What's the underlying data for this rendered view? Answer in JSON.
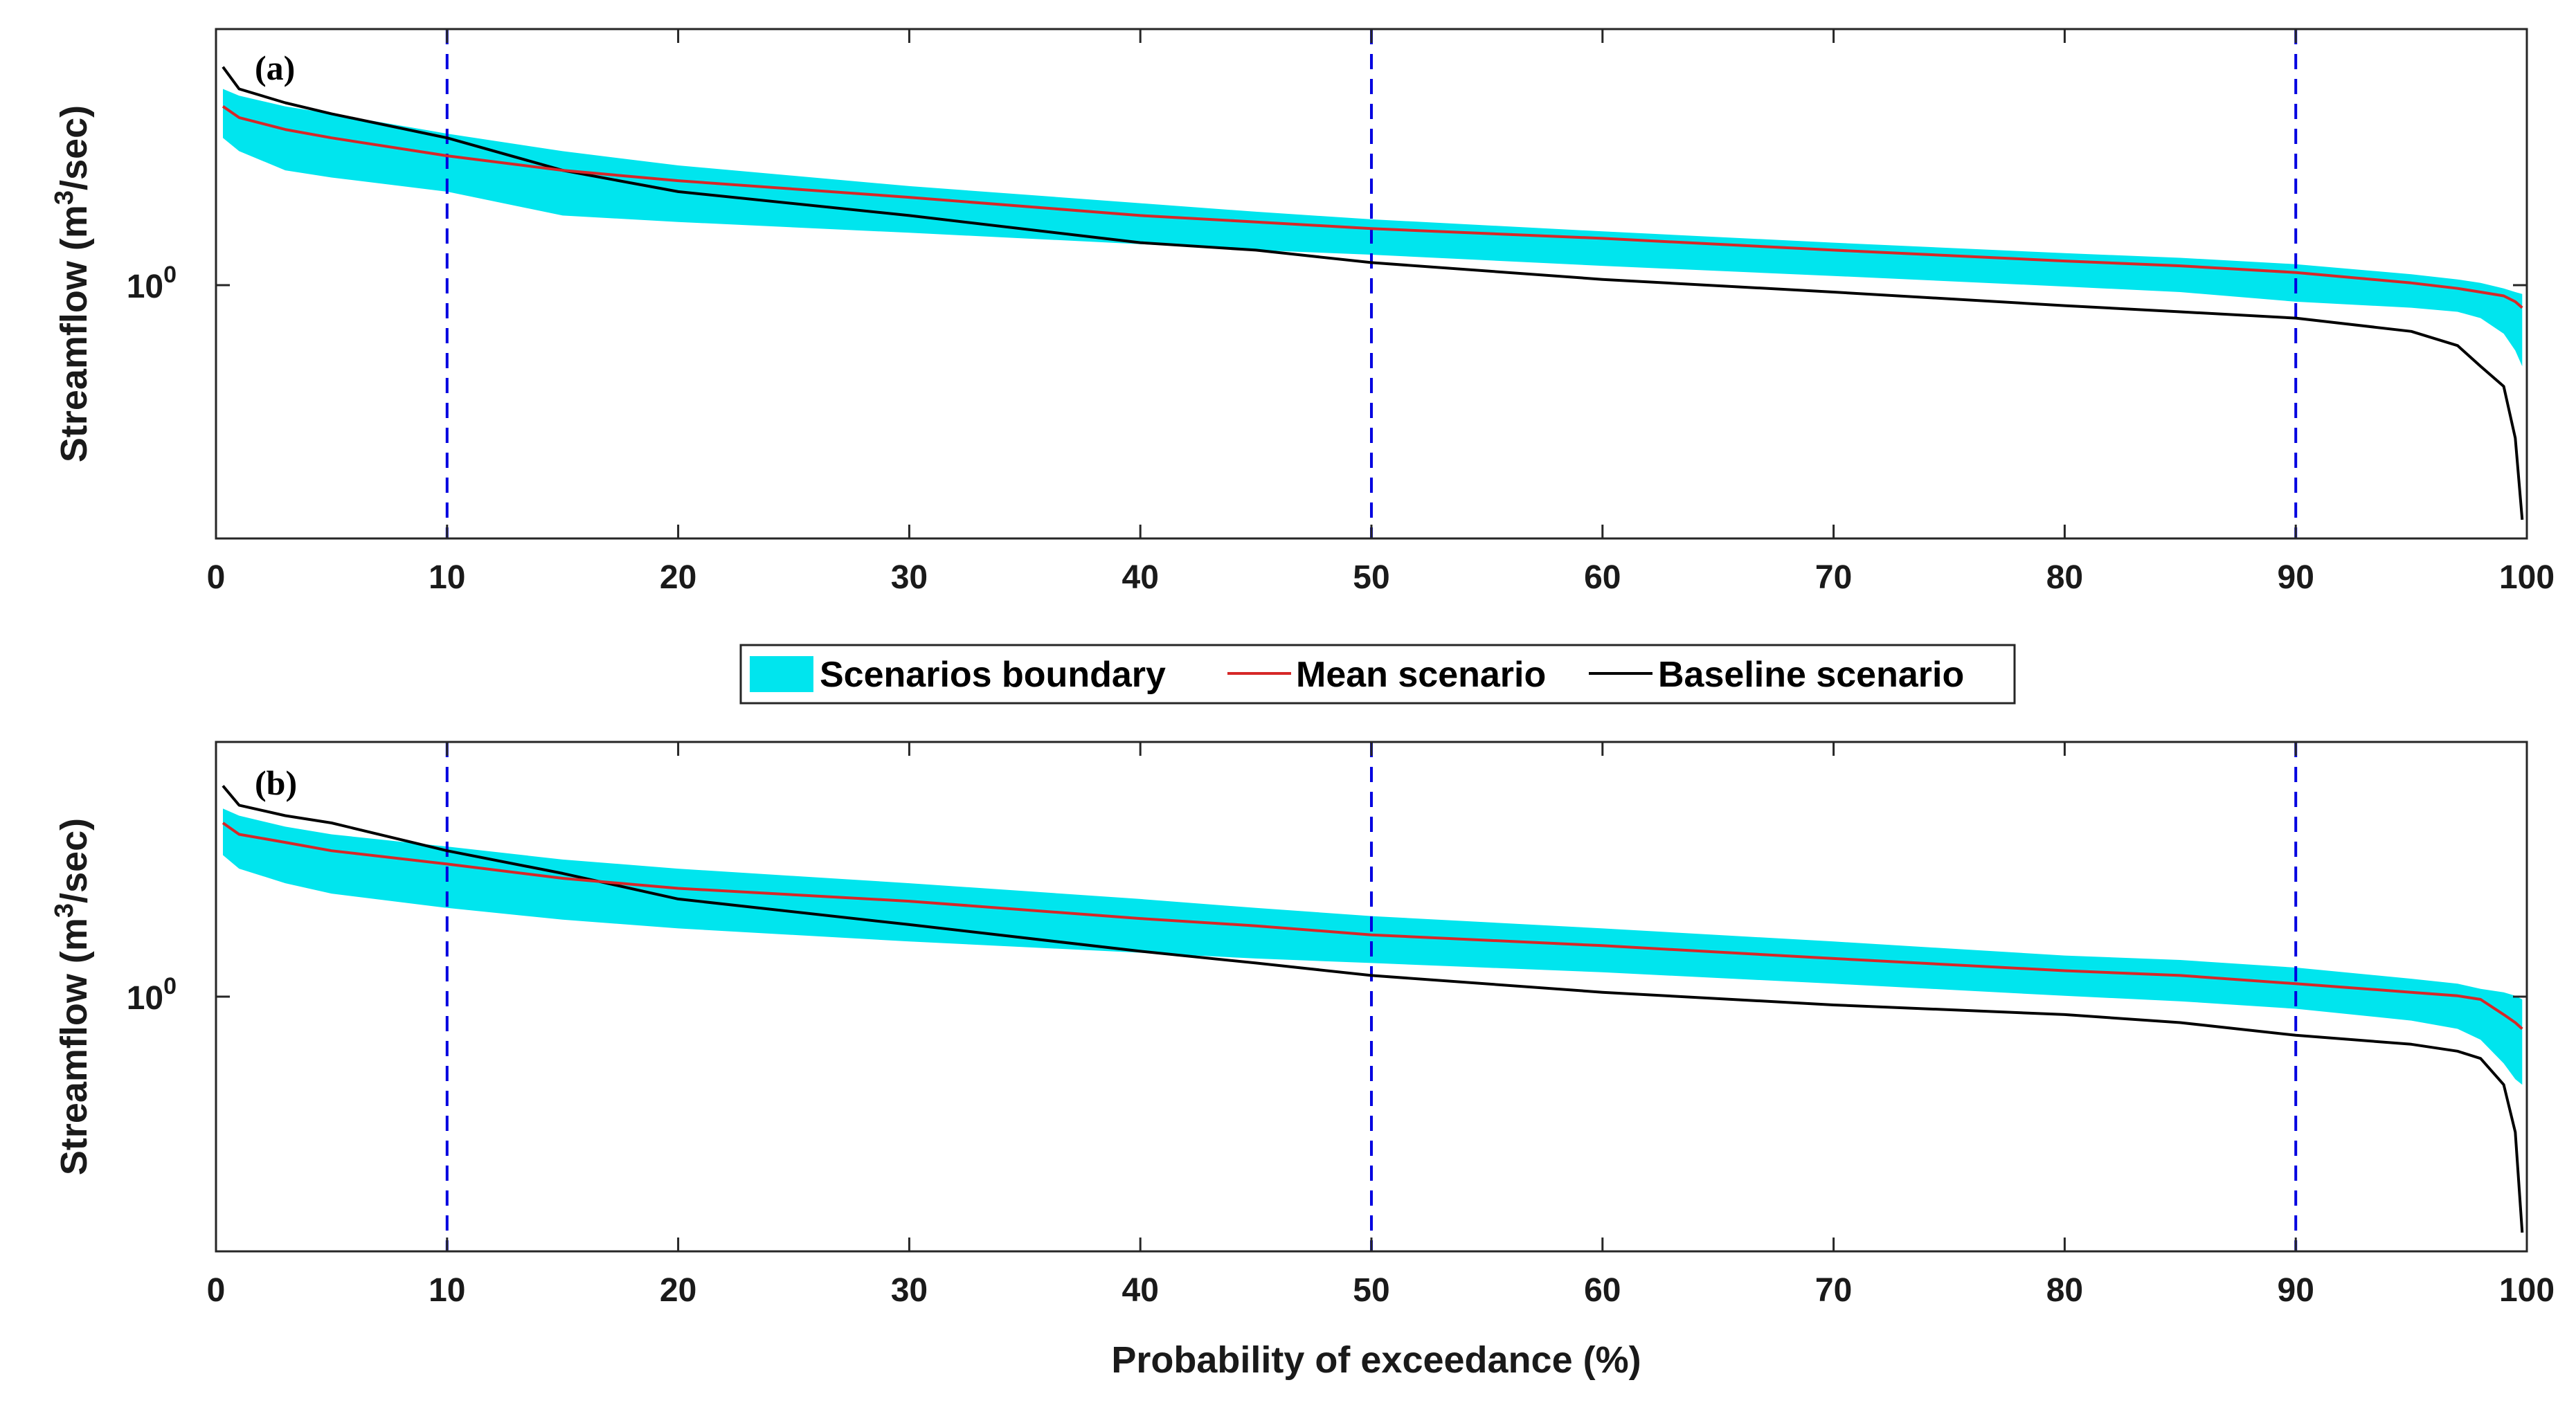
{
  "legend": {
    "boundary_label": "Scenarios boundary",
    "mean_label": "Mean scenario",
    "baseline_label": "Baseline scenario"
  },
  "colors": {
    "boundary": "#00e5ee",
    "mean": "#d62728",
    "baseline": "#000000",
    "reference_line": "#0000e0"
  },
  "chart_data": [
    {
      "type": "area",
      "panel_label": "(a)",
      "title": "",
      "xlabel": "",
      "ylabel": "Streamflow (m³/sec)",
      "ylabel_parts": {
        "before": "Streamflow (m",
        "sup": "3",
        "after": "/sec)"
      },
      "yscale": "log",
      "xlim": [
        0,
        100
      ],
      "ylim": [
        0.3,
        4.0
      ],
      "x_ticks": [
        0,
        10,
        20,
        30,
        40,
        50,
        60,
        70,
        80,
        90,
        100
      ],
      "y_tick_label": {
        "base": "10",
        "exp": "0",
        "value": 1.0
      },
      "reference_lines_x": [
        10,
        50,
        90
      ],
      "x": [
        0.3,
        1,
        3,
        5,
        10,
        15,
        20,
        30,
        40,
        45,
        50,
        60,
        70,
        80,
        85,
        90,
        95,
        97,
        98,
        99,
        99.5,
        99.8
      ],
      "series": [
        {
          "name": "Scenarios boundary (upper)",
          "values": [
            2.95,
            2.85,
            2.7,
            2.6,
            2.35,
            2.15,
            2.0,
            1.8,
            1.65,
            1.58,
            1.52,
            1.43,
            1.35,
            1.28,
            1.25,
            1.21,
            1.15,
            1.12,
            1.1,
            1.07,
            1.05,
            1.04
          ]
        },
        {
          "name": "Scenarios boundary (lower)",
          "values": [
            2.3,
            2.15,
            1.95,
            1.88,
            1.75,
            1.55,
            1.5,
            1.42,
            1.34,
            1.3,
            1.27,
            1.2,
            1.14,
            1.08,
            1.05,
            1.0,
            0.97,
            0.95,
            0.92,
            0.85,
            0.78,
            0.72
          ]
        },
        {
          "name": "Mean scenario",
          "values": [
            2.7,
            2.55,
            2.4,
            2.3,
            2.1,
            1.95,
            1.85,
            1.7,
            1.55,
            1.5,
            1.45,
            1.38,
            1.3,
            1.23,
            1.2,
            1.16,
            1.1,
            1.07,
            1.05,
            1.03,
            1.0,
            0.97
          ]
        },
        {
          "name": "Baseline scenario",
          "values": [
            3.3,
            2.95,
            2.75,
            2.6,
            2.3,
            1.95,
            1.75,
            1.55,
            1.35,
            1.3,
            1.22,
            1.12,
            1.05,
            0.98,
            0.95,
            0.92,
            0.86,
            0.8,
            0.72,
            0.65,
            0.5,
            0.33
          ]
        }
      ]
    },
    {
      "type": "area",
      "panel_label": "(b)",
      "title": "",
      "xlabel": "Probability of exceedance (%)",
      "ylabel": "Streamflow (m³/sec)",
      "ylabel_parts": {
        "before": "Streamflow (m",
        "sup": "3",
        "after": "/sec)"
      },
      "yscale": "log",
      "xlim": [
        0,
        100
      ],
      "ylim": [
        0.3,
        4.0
      ],
      "x_ticks": [
        0,
        10,
        20,
        30,
        40,
        50,
        60,
        70,
        80,
        90,
        100
      ],
      "y_tick_label": {
        "base": "10",
        "exp": "0",
        "value": 1.0
      },
      "reference_lines_x": [
        10,
        50,
        90
      ],
      "x": [
        0.3,
        1,
        3,
        5,
        10,
        15,
        20,
        30,
        40,
        45,
        50,
        60,
        70,
        80,
        85,
        90,
        95,
        97,
        98,
        99,
        99.5,
        99.8
      ],
      "series": [
        {
          "name": "Scenarios boundary (upper)",
          "values": [
            2.85,
            2.75,
            2.6,
            2.5,
            2.35,
            2.2,
            2.1,
            1.95,
            1.8,
            1.72,
            1.65,
            1.55,
            1.45,
            1.35,
            1.32,
            1.27,
            1.2,
            1.17,
            1.14,
            1.12,
            1.1,
            1.08
          ]
        },
        {
          "name": "Scenarios boundary (lower)",
          "values": [
            2.25,
            2.1,
            1.95,
            1.85,
            1.72,
            1.62,
            1.55,
            1.45,
            1.37,
            1.33,
            1.3,
            1.24,
            1.17,
            1.1,
            1.07,
            1.03,
            0.97,
            0.93,
            0.88,
            0.78,
            0.72,
            0.7
          ]
        },
        {
          "name": "Mean scenario",
          "values": [
            2.65,
            2.5,
            2.4,
            2.3,
            2.15,
            2.0,
            1.9,
            1.78,
            1.63,
            1.57,
            1.5,
            1.42,
            1.33,
            1.25,
            1.22,
            1.17,
            1.12,
            1.1,
            1.08,
            1.0,
            0.96,
            0.93
          ]
        },
        {
          "name": "Baseline scenario",
          "values": [
            3.2,
            2.9,
            2.75,
            2.65,
            2.3,
            2.05,
            1.8,
            1.58,
            1.38,
            1.3,
            1.22,
            1.12,
            1.05,
            1.0,
            0.96,
            0.9,
            0.86,
            0.83,
            0.8,
            0.7,
            0.55,
            0.33
          ]
        }
      ]
    }
  ]
}
